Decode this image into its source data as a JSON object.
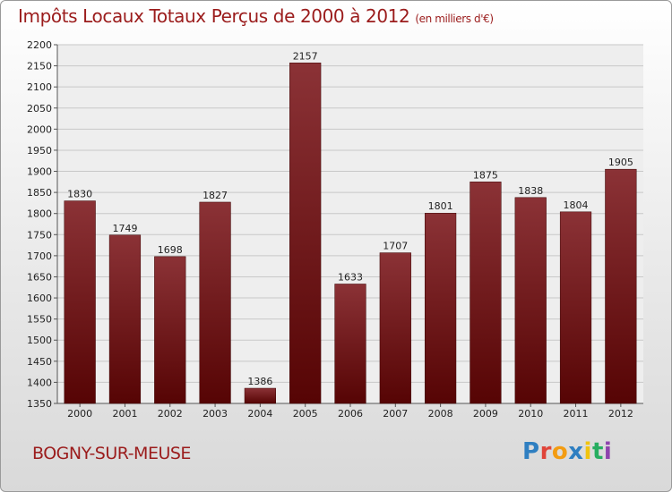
{
  "header": {
    "title": "Impôts Locaux Totaux Perçus de 2000 à 2012",
    "unit": "(en milliers d'€)"
  },
  "footer": {
    "commune": "BOGNY-SUR-MEUSE",
    "logo_text": "Proxiti",
    "logo_colors": [
      "#2f7fc1",
      "#e0453a",
      "#f39c12",
      "#2f7fc1",
      "#f1c40f",
      "#27ae60",
      "#8e44ad"
    ]
  },
  "chart_data": {
    "type": "bar",
    "title": "Impôts Locaux Totaux Perçus de 2000 à 2012",
    "subtitle": "(en milliers d'€)",
    "categories": [
      "2000",
      "2001",
      "2002",
      "2003",
      "2004",
      "2005",
      "2006",
      "2007",
      "2008",
      "2009",
      "2010",
      "2011",
      "2012"
    ],
    "values": [
      1830,
      1749,
      1698,
      1827,
      1386,
      2157,
      1633,
      1707,
      1801,
      1875,
      1838,
      1804,
      1905
    ],
    "data_labels": [
      "1830",
      "1749",
      "1698",
      "1827",
      "1386",
      "2157",
      "1633",
      "1707",
      "1801",
      "1875",
      "1838",
      "1804",
      "1905"
    ],
    "ylim": [
      1350,
      2200
    ],
    "yticks": [
      1350,
      1400,
      1450,
      1500,
      1550,
      1600,
      1650,
      1700,
      1750,
      1800,
      1850,
      1900,
      1950,
      2000,
      2050,
      2100,
      2150,
      2200
    ],
    "grid": true,
    "bar_color_top": "#8b3236",
    "bar_color_bottom": "#560404",
    "xlabel": "",
    "ylabel": ""
  }
}
